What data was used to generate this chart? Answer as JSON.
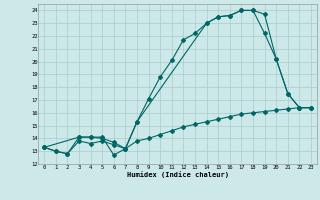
{
  "title": "",
  "xlabel": "Humidex (Indice chaleur)",
  "ylabel": "",
  "bg_color": "#cce8e8",
  "grid_color": "#aacccc",
  "line_color": "#006666",
  "xlim": [
    -0.5,
    23.5
  ],
  "ylim": [
    12,
    24.5
  ],
  "xticks": [
    0,
    1,
    2,
    3,
    4,
    5,
    6,
    7,
    8,
    9,
    10,
    11,
    12,
    13,
    14,
    15,
    16,
    17,
    18,
    19,
    20,
    21,
    22,
    23
  ],
  "yticks": [
    12,
    13,
    14,
    15,
    16,
    17,
    18,
    19,
    20,
    21,
    22,
    23,
    24
  ],
  "line1_x": [
    0,
    1,
    2,
    3,
    4,
    5,
    6,
    7,
    8,
    9,
    10,
    11,
    12,
    13,
    14,
    15,
    16,
    17,
    18,
    19,
    20,
    21,
    22,
    23
  ],
  "line1_y": [
    13.3,
    13.0,
    12.8,
    14.1,
    14.1,
    14.1,
    12.7,
    13.2,
    15.3,
    17.1,
    18.8,
    20.1,
    21.7,
    22.2,
    23.0,
    23.5,
    23.6,
    24.0,
    24.0,
    23.7,
    20.2,
    17.5,
    16.4,
    16.4
  ],
  "line2_x": [
    0,
    1,
    2,
    3,
    4,
    5,
    6,
    7,
    8,
    9,
    10,
    11,
    12,
    13,
    14,
    15,
    16,
    17,
    18,
    19,
    20,
    21,
    22,
    23
  ],
  "line2_y": [
    13.3,
    13.0,
    12.8,
    13.8,
    13.6,
    13.8,
    13.5,
    13.2,
    13.8,
    14.0,
    14.3,
    14.6,
    14.9,
    15.1,
    15.3,
    15.5,
    15.7,
    15.9,
    16.0,
    16.1,
    16.2,
    16.3,
    16.4,
    16.4
  ],
  "line3_x": [
    0,
    3,
    4,
    5,
    6,
    7,
    8,
    14,
    15,
    16,
    17,
    18,
    19,
    20,
    21,
    22,
    23
  ],
  "line3_y": [
    13.3,
    14.1,
    14.1,
    14.0,
    13.7,
    13.2,
    15.3,
    23.0,
    23.5,
    23.6,
    24.0,
    24.0,
    22.2,
    20.2,
    17.5,
    16.4,
    16.4
  ]
}
